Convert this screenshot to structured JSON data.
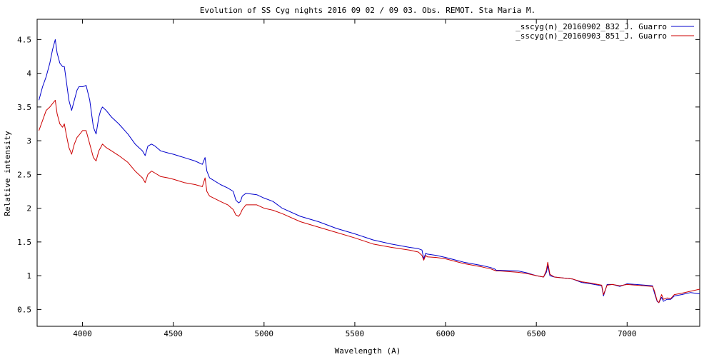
{
  "chart_data": {
    "type": "line",
    "title": "Evolution of SS Cyg  nights 2016 09 02 / 09 03.  Obs. REMOT. Sta Maria M.",
    "xlabel": "Wavelength (A)",
    "ylabel": "Relative intensity",
    "xlim": [
      3750,
      7400
    ],
    "ylim": [
      0.25,
      4.8
    ],
    "x_ticks": [
      4000,
      4500,
      5000,
      5500,
      6000,
      6500,
      7000
    ],
    "x_tick_labels": [
      "4000",
      "4500",
      "5000",
      "5500",
      "6000",
      "6500",
      "7000"
    ],
    "y_ticks": [
      0.5,
      1,
      1.5,
      2,
      2.5,
      3,
      3.5,
      4,
      4.5
    ],
    "y_tick_labels": [
      "0.5",
      "1",
      "1.5",
      "2",
      "2.5",
      "3",
      "3.5",
      "4",
      "4.5"
    ],
    "grid": false,
    "legend_position": "top-right",
    "series": [
      {
        "name": "_sscyg(n)_20160902_832_J. Guarro",
        "color": "#0000cc",
        "x": [
          3760,
          3780,
          3800,
          3820,
          3835,
          3850,
          3860,
          3875,
          3890,
          3900,
          3910,
          3925,
          3940,
          3955,
          3970,
          3980,
          4000,
          4020,
          4040,
          4060,
          4075,
          4090,
          4100,
          4110,
          4130,
          4160,
          4200,
          4250,
          4290,
          4310,
          4330,
          4345,
          4360,
          4380,
          4400,
          4430,
          4470,
          4500,
          4560,
          4620,
          4660,
          4675,
          4685,
          4700,
          4760,
          4800,
          4830,
          4845,
          4860,
          4870,
          4880,
          4900,
          4960,
          5000,
          5050,
          5100,
          5200,
          5300,
          5400,
          5500,
          5600,
          5700,
          5800,
          5850,
          5870,
          5880,
          5890,
          5900,
          5950,
          6000,
          6100,
          6200,
          6250,
          6270,
          6280,
          6300,
          6400,
          6450,
          6500,
          6540,
          6555,
          6563,
          6575,
          6600,
          6700,
          6750,
          6800,
          6860,
          6870,
          6890,
          6920,
          6960,
          7000,
          7050,
          7140,
          7150,
          7165,
          7175,
          7190,
          7200,
          7220,
          7240,
          7260,
          7300,
          7350,
          7400
        ],
        "y": [
          3.6,
          3.8,
          3.95,
          4.15,
          4.35,
          4.5,
          4.3,
          4.15,
          4.1,
          4.1,
          3.9,
          3.6,
          3.45,
          3.6,
          3.75,
          3.8,
          3.8,
          3.82,
          3.6,
          3.2,
          3.1,
          3.35,
          3.45,
          3.5,
          3.45,
          3.35,
          3.25,
          3.1,
          2.95,
          2.9,
          2.85,
          2.78,
          2.92,
          2.95,
          2.92,
          2.85,
          2.82,
          2.8,
          2.75,
          2.7,
          2.65,
          2.75,
          2.55,
          2.45,
          2.35,
          2.3,
          2.25,
          2.12,
          2.08,
          2.1,
          2.18,
          2.22,
          2.2,
          2.15,
          2.1,
          2.0,
          1.88,
          1.8,
          1.7,
          1.62,
          1.53,
          1.47,
          1.42,
          1.4,
          1.38,
          1.25,
          1.33,
          1.32,
          1.3,
          1.27,
          1.2,
          1.15,
          1.12,
          1.1,
          1.08,
          1.08,
          1.07,
          1.04,
          1.0,
          0.98,
          1.05,
          1.15,
          1.0,
          0.98,
          0.95,
          0.9,
          0.88,
          0.85,
          0.7,
          0.87,
          0.87,
          0.84,
          0.88,
          0.87,
          0.85,
          0.75,
          0.62,
          0.6,
          0.68,
          0.62,
          0.65,
          0.65,
          0.7,
          0.72,
          0.75,
          0.73
        ]
      },
      {
        "name": "_sscyg(n)_20160903_851_J. Guarro",
        "color": "#cc0000",
        "x": [
          3760,
          3780,
          3800,
          3820,
          3835,
          3850,
          3860,
          3875,
          3890,
          3900,
          3910,
          3925,
          3940,
          3955,
          3970,
          3980,
          4000,
          4020,
          4040,
          4060,
          4075,
          4090,
          4100,
          4110,
          4130,
          4160,
          4200,
          4250,
          4290,
          4310,
          4330,
          4345,
          4360,
          4380,
          4400,
          4430,
          4470,
          4500,
          4560,
          4620,
          4660,
          4675,
          4685,
          4700,
          4760,
          4800,
          4830,
          4845,
          4860,
          4870,
          4880,
          4900,
          4960,
          5000,
          5050,
          5100,
          5200,
          5300,
          5400,
          5500,
          5600,
          5700,
          5800,
          5850,
          5870,
          5880,
          5890,
          5900,
          5950,
          6000,
          6100,
          6200,
          6250,
          6270,
          6280,
          6300,
          6400,
          6450,
          6500,
          6540,
          6555,
          6563,
          6575,
          6600,
          6700,
          6750,
          6800,
          6860,
          6870,
          6890,
          6920,
          6960,
          7000,
          7050,
          7140,
          7150,
          7165,
          7175,
          7190,
          7200,
          7220,
          7240,
          7260,
          7300,
          7350,
          7400
        ],
        "y": [
          3.15,
          3.3,
          3.45,
          3.5,
          3.55,
          3.6,
          3.4,
          3.25,
          3.2,
          3.25,
          3.1,
          2.9,
          2.8,
          2.95,
          3.05,
          3.08,
          3.15,
          3.15,
          2.95,
          2.75,
          2.7,
          2.85,
          2.9,
          2.95,
          2.9,
          2.85,
          2.78,
          2.68,
          2.55,
          2.5,
          2.45,
          2.38,
          2.5,
          2.55,
          2.52,
          2.47,
          2.45,
          2.43,
          2.38,
          2.35,
          2.32,
          2.45,
          2.25,
          2.18,
          2.1,
          2.05,
          1.98,
          1.9,
          1.88,
          1.92,
          1.98,
          2.05,
          2.05,
          2.0,
          1.97,
          1.92,
          1.8,
          1.72,
          1.64,
          1.56,
          1.47,
          1.42,
          1.38,
          1.35,
          1.3,
          1.23,
          1.3,
          1.28,
          1.27,
          1.25,
          1.18,
          1.13,
          1.1,
          1.08,
          1.07,
          1.07,
          1.05,
          1.03,
          1.0,
          0.98,
          1.08,
          1.2,
          1.02,
          0.98,
          0.95,
          0.91,
          0.89,
          0.86,
          0.72,
          0.86,
          0.87,
          0.85,
          0.87,
          0.86,
          0.84,
          0.78,
          0.63,
          0.6,
          0.72,
          0.65,
          0.67,
          0.66,
          0.72,
          0.74,
          0.77,
          0.8
        ]
      }
    ]
  }
}
